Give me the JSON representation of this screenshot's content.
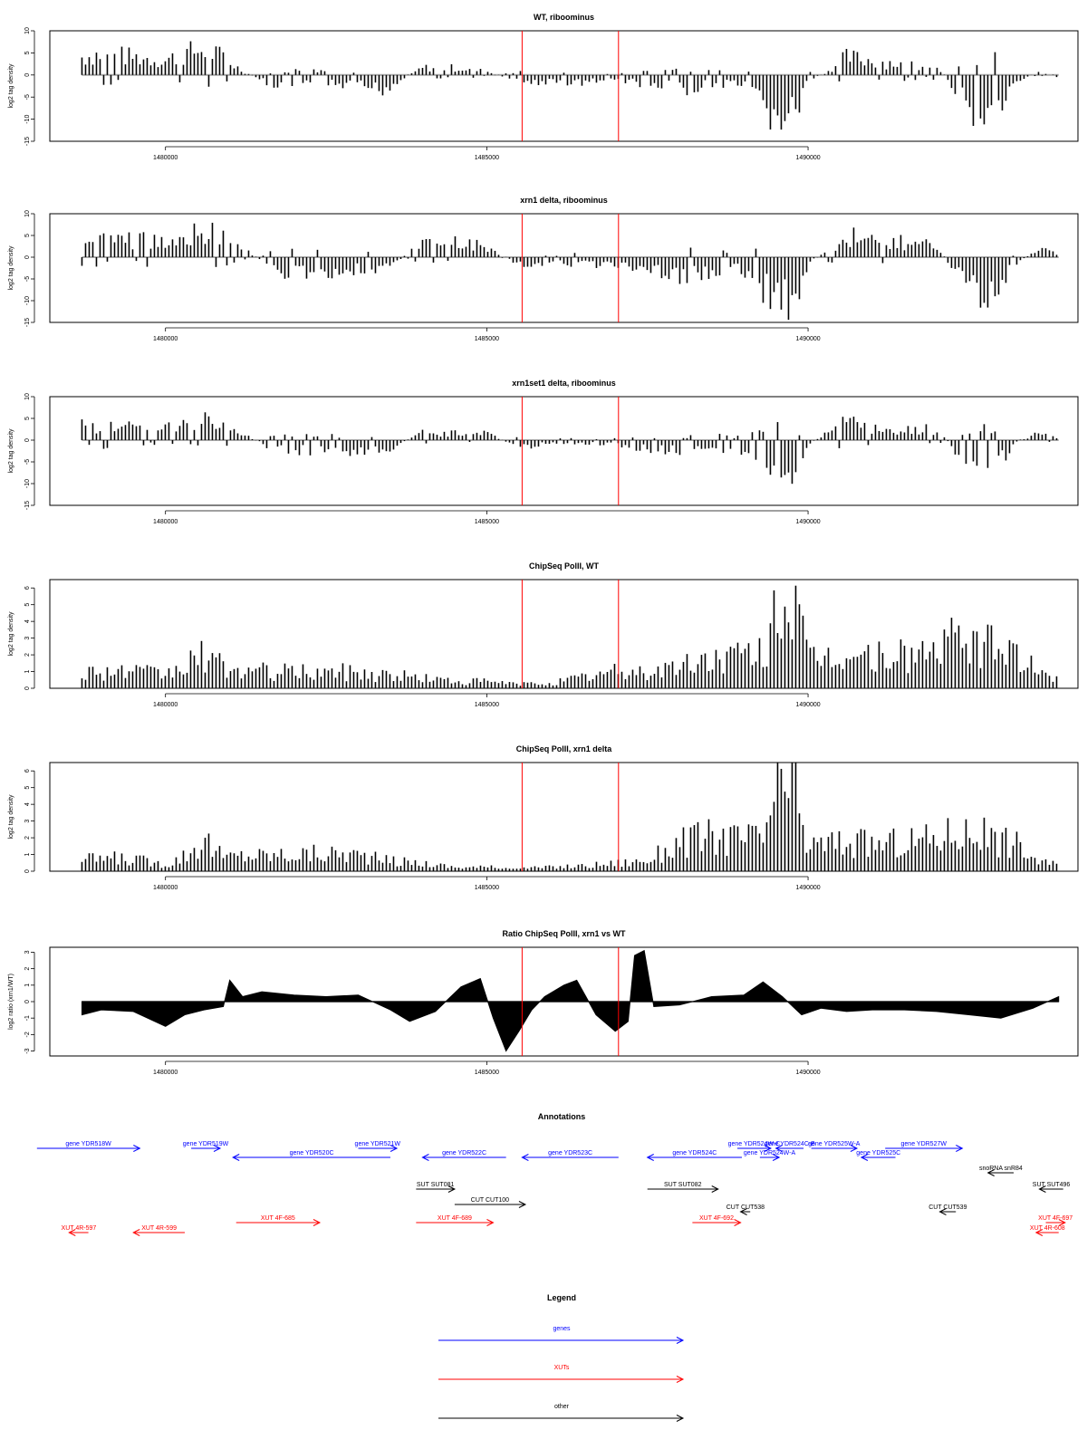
{
  "window": {
    "title": ""
  },
  "colors": {
    "gene": "#0000ff",
    "xut": "#ff0000",
    "other": "#000000",
    "marker": "#ff0000",
    "zero": "#aaaaaa",
    "frame": "#000000"
  },
  "markers": [
    1485550,
    1487050
  ],
  "chart_data": [
    {
      "type": "bar",
      "title": "WT, riboominus",
      "ylabel": "log2 tag density",
      "xlim": [
        1478200,
        1494200
      ],
      "ylim": [
        -15,
        10
      ],
      "xticks": [
        1480000,
        1485000,
        1490000
      ],
      "xtick_labels": [
        "1480000",
        "1485000",
        "1490000"
      ],
      "yticks": [
        10,
        5,
        0,
        -5,
        -10,
        -15
      ],
      "ytick_labels": [
        "10",
        "5",
        "0",
        "-5",
        "-10",
        "-15"
      ],
      "x": [
        1478700,
        1479000,
        1479500,
        1480000,
        1480300,
        1480600,
        1480900,
        1481200,
        1481700,
        1482300,
        1482900,
        1483400,
        1484000,
        1484500,
        1485000,
        1485500,
        1486000,
        1486500,
        1487000,
        1487500,
        1488000,
        1488500,
        1489000,
        1489300,
        1489500,
        1489800,
        1490000,
        1490300,
        1490600,
        1491000,
        1491500,
        1492000,
        1492300,
        1492600,
        1492900,
        1493200,
        1493600,
        1493900
      ],
      "values": [
        5,
        6,
        5,
        4,
        6,
        7,
        5,
        1,
        -3,
        -3,
        -3,
        -4,
        2,
        2,
        1,
        -2,
        -2,
        -2,
        -1,
        -3,
        -4,
        -3,
        -3,
        -9,
        -12,
        -11,
        -2,
        1,
        5,
        4,
        3,
        3,
        -4,
        -10,
        -11,
        -2,
        1,
        -1
      ]
    },
    {
      "type": "bar",
      "title": "xrn1 delta, riboominus",
      "ylabel": "log2 tag density",
      "xlim": [
        1478200,
        1494200
      ],
      "ylim": [
        -15,
        10
      ],
      "xticks": [
        1480000,
        1485000,
        1490000
      ],
      "xtick_labels": [
        "1480000",
        "1485000",
        "1490000"
      ],
      "yticks": [
        10,
        5,
        0,
        -5,
        -10,
        -15
      ],
      "ytick_labels": [
        "10",
        "5",
        "0",
        "-5",
        "-10",
        "-15"
      ],
      "x": [
        1478700,
        1479000,
        1479500,
        1480000,
        1480300,
        1480600,
        1480900,
        1481200,
        1481700,
        1482300,
        1482900,
        1483400,
        1484000,
        1484500,
        1485000,
        1485500,
        1486000,
        1486500,
        1487000,
        1487500,
        1488000,
        1488500,
        1489000,
        1489300,
        1489500,
        1489800,
        1490000,
        1490300,
        1490600,
        1491000,
        1491500,
        1492000,
        1492300,
        1492600,
        1492900,
        1493200,
        1493600,
        1493900
      ],
      "values": [
        5,
        5,
        5,
        4,
        7,
        8,
        6,
        3,
        -4,
        -4,
        -4,
        -4,
        4,
        4,
        3,
        -2,
        -2,
        -2,
        -2,
        -4,
        -5,
        -4,
        -4,
        -9,
        -13,
        -11,
        -2,
        2,
        6,
        5,
        4,
        3,
        -4,
        -9,
        -10,
        -2,
        2,
        1
      ]
    },
    {
      "type": "bar",
      "title": "xrn1set1 delta, riboominus",
      "ylabel": "log2 tag density",
      "xlim": [
        1478200,
        1494200
      ],
      "ylim": [
        -15,
        10
      ],
      "xticks": [
        1480000,
        1485000,
        1490000
      ],
      "xtick_labels": [
        "1480000",
        "1485000",
        "1490000"
      ],
      "yticks": [
        10,
        5,
        0,
        -5,
        -10,
        -15
      ],
      "ytick_labels": [
        "10",
        "5",
        "0",
        "-5",
        "-10",
        "-15"
      ],
      "x": [
        1478700,
        1479000,
        1479500,
        1480000,
        1480300,
        1480600,
        1480900,
        1481200,
        1481700,
        1482300,
        1482900,
        1483400,
        1484000,
        1484500,
        1485000,
        1485500,
        1486000,
        1486500,
        1487000,
        1487500,
        1488000,
        1488500,
        1489000,
        1489300,
        1489500,
        1489800,
        1490000,
        1490300,
        1490600,
        1491000,
        1491500,
        1492000,
        1492300,
        1492600,
        1492900,
        1493200,
        1493600,
        1493900
      ],
      "values": [
        4,
        4,
        4,
        3,
        5,
        6,
        4,
        2,
        -3,
        -3,
        -3,
        -3,
        2,
        2,
        2,
        -2,
        -1,
        -1,
        -1,
        -3,
        -3,
        -3,
        -3,
        -6,
        -10,
        -9,
        -1,
        2,
        5,
        3,
        3,
        3,
        -3,
        -8,
        -8,
        -1,
        2,
        1
      ]
    },
    {
      "type": "bar",
      "title": "ChipSeq PolII, WT",
      "ylabel": "log2 tag density",
      "xlim": [
        1478200,
        1494200
      ],
      "ylim": [
        0,
        6.5
      ],
      "xticks": [
        1480000,
        1485000,
        1490000
      ],
      "xtick_labels": [
        "1480000",
        "1485000",
        "1490000"
      ],
      "yticks": [
        0,
        1,
        2,
        3,
        4,
        5,
        6
      ],
      "ytick_labels": [
        "0",
        "1",
        "2",
        "3",
        "4",
        "5",
        "6"
      ],
      "x": [
        1478700,
        1479000,
        1479500,
        1480000,
        1480300,
        1480600,
        1480900,
        1481200,
        1481700,
        1482300,
        1482900,
        1483400,
        1484000,
        1484500,
        1485000,
        1485500,
        1486000,
        1486500,
        1487000,
        1487500,
        1488000,
        1488500,
        1489000,
        1489300,
        1489500,
        1489800,
        1490000,
        1490300,
        1490600,
        1491000,
        1491500,
        1492000,
        1492300,
        1492600,
        1492900,
        1493200,
        1493600,
        1493900
      ],
      "values": [
        1.2,
        1.3,
        1.2,
        1,
        1.6,
        2.5,
        1.5,
        1.3,
        1.2,
        1.2,
        1.2,
        1,
        0.8,
        0.5,
        0.5,
        0.3,
        0.4,
        0.8,
        1.2,
        1.2,
        1.6,
        2.2,
        2.4,
        2.6,
        6.2,
        6.3,
        2,
        2.3,
        2.4,
        2.3,
        2.5,
        2.8,
        3.6,
        3.2,
        3,
        2.9,
        1,
        0.8
      ]
    },
    {
      "type": "bar",
      "title": "ChipSeq PolII, xrn1 delta",
      "ylabel": "log2 tag density",
      "xlim": [
        1478200,
        1494200
      ],
      "ylim": [
        0,
        6.5
      ],
      "xticks": [
        1480000,
        1485000,
        1490000
      ],
      "xtick_labels": [
        "1480000",
        "1485000",
        "1490000"
      ],
      "yticks": [
        0,
        1,
        2,
        3,
        4,
        5,
        6
      ],
      "ytick_labels": [
        "0",
        "1",
        "2",
        "3",
        "4",
        "5",
        "6"
      ],
      "x": [
        1478700,
        1479000,
        1479500,
        1480000,
        1480300,
        1480600,
        1480900,
        1481200,
        1481700,
        1482300,
        1482900,
        1483400,
        1484000,
        1484500,
        1485000,
        1485500,
        1486000,
        1486500,
        1487000,
        1487500,
        1488000,
        1488500,
        1489000,
        1489300,
        1489500,
        1489800,
        1490000,
        1490300,
        1490600,
        1491000,
        1491500,
        1492000,
        1492300,
        1492600,
        1492900,
        1493200,
        1493600,
        1493900
      ],
      "values": [
        0.8,
        1,
        0.9,
        0.5,
        1.2,
        2.4,
        1,
        1.2,
        1.2,
        1.3,
        1.3,
        0.8,
        0.6,
        0.3,
        0.3,
        0.2,
        0.3,
        0.4,
        0.6,
        0.8,
        2.2,
        2.6,
        2.4,
        2.5,
        6.1,
        6,
        1.8,
        2.1,
        2.2,
        2,
        2.2,
        2.5,
        3,
        2.8,
        2.4,
        2.2,
        0.7,
        0.5
      ]
    },
    {
      "type": "area",
      "title": "Ratio ChipSeq PolII, xrn1 vs WT",
      "ylabel": "log2 ratio (xrn1/WT)",
      "xlim": [
        1478200,
        1494200
      ],
      "ylim": [
        -3.3,
        3.3
      ],
      "xticks": [
        1480000,
        1485000,
        1490000
      ],
      "xtick_labels": [
        "1480000",
        "1485000",
        "1490000"
      ],
      "yticks": [
        3,
        2,
        1,
        0,
        -1,
        -2,
        -3
      ],
      "ytick_labels": [
        "3",
        "2",
        "1",
        "0",
        "-1",
        "-2",
        "-3"
      ],
      "x": [
        1478700,
        1479000,
        1479500,
        1480000,
        1480300,
        1480600,
        1480900,
        1481000,
        1481200,
        1481500,
        1482000,
        1482500,
        1483000,
        1483500,
        1483800,
        1484200,
        1484600,
        1484900,
        1485100,
        1485300,
        1485500,
        1485700,
        1485900,
        1486200,
        1486400,
        1486700,
        1487000,
        1487200,
        1487300,
        1487450,
        1487600,
        1488000,
        1488500,
        1489000,
        1489300,
        1489600,
        1489900,
        1490200,
        1490600,
        1491000,
        1491500,
        1492000,
        1492500,
        1493000,
        1493500,
        1493900
      ],
      "values": [
        -0.8,
        -0.5,
        -0.6,
        -1.5,
        -0.8,
        -0.5,
        -0.3,
        1.3,
        0.3,
        0.6,
        0.4,
        0.3,
        0.4,
        -0.5,
        -1.2,
        -0.6,
        0.9,
        1.4,
        -1,
        -3,
        -1.8,
        -0.5,
        0.3,
        1,
        1.3,
        -0.8,
        -1.8,
        -1.2,
        2.8,
        3.1,
        -0.3,
        -0.2,
        0.3,
        0.4,
        1.2,
        0.3,
        -0.8,
        -0.4,
        -0.6,
        -0.5,
        -0.5,
        -0.6,
        -0.8,
        -1,
        -0.4,
        0.3
      ]
    }
  ],
  "annotations": {
    "title": "Annotations",
    "items": [
      {
        "label": "gene YDR518W",
        "start": 1478000,
        "end": 1479600,
        "type": "gene",
        "row": 0
      },
      {
        "label": "gene YDR519W",
        "start": 1480400,
        "end": 1480850,
        "type": "gene",
        "row": 0
      },
      {
        "label": "gene YDR520C",
        "start": 1481050,
        "end": 1483500,
        "type": "gene",
        "row": 1
      },
      {
        "label": "gene YDR521W",
        "start": 1483000,
        "end": 1483600,
        "type": "gene",
        "row": 0
      },
      {
        "label": "gene YDR522C",
        "start": 1484000,
        "end": 1485300,
        "type": "gene",
        "row": 1
      },
      {
        "label": "gene YDR523C",
        "start": 1485550,
        "end": 1487050,
        "type": "gene",
        "row": 1
      },
      {
        "label": "gene YDR524C",
        "start": 1487500,
        "end": 1488970,
        "type": "gene",
        "row": 1
      },
      {
        "label": "gene YDR524W-C",
        "start": 1488900,
        "end": 1489420,
        "type": "gene",
        "row": 0
      },
      {
        "label": "gene YDR524W-A",
        "start": 1489250,
        "end": 1489550,
        "type": "gene",
        "row": 1
      },
      {
        "label": "gene YDR524C-B",
        "start": 1489500,
        "end": 1489930,
        "type": "gene",
        "row": 0
      },
      {
        "label": "gene YDR525W-A",
        "start": 1490050,
        "end": 1490760,
        "type": "gene",
        "row": 0
      },
      {
        "label": "gene YDR525C",
        "start": 1490830,
        "end": 1491360,
        "type": "gene",
        "row": 1
      },
      {
        "label": "gene YDR527W",
        "start": 1491200,
        "end": 1492400,
        "type": "gene",
        "row": 0
      },
      {
        "label": "snoRNA snR84",
        "start": 1492800,
        "end": 1493200,
        "type": "other",
        "row": 2
      },
      {
        "label": "SUT SUT496",
        "start": 1493600,
        "end": 1493970,
        "type": "other",
        "row": 3
      },
      {
        "label": "SUT SUT081",
        "start": 1483900,
        "end": 1484500,
        "type": "other",
        "row": 3
      },
      {
        "label": "SUT SUT082",
        "start": 1487500,
        "end": 1488600,
        "type": "other",
        "row": 3
      },
      {
        "label": "CUT CUT100",
        "start": 1484500,
        "end": 1485600,
        "type": "other",
        "row": 4
      },
      {
        "label": "CUT CUT538",
        "start": 1488950,
        "end": 1489100,
        "type": "other",
        "row": 5
      },
      {
        "label": "CUT CUT539",
        "start": 1492050,
        "end": 1492300,
        "type": "other",
        "row": 5
      },
      {
        "label": "XUT 4F-685",
        "start": 1481100,
        "end": 1482400,
        "type": "xut",
        "row": 6
      },
      {
        "label": "XUT 4F-689",
        "start": 1483900,
        "end": 1485100,
        "type": "xut",
        "row": 6
      },
      {
        "label": "XUT 4F-692",
        "start": 1488200,
        "end": 1488950,
        "type": "xut",
        "row": 6
      },
      {
        "label": "XUT 4F-697",
        "start": 1493700,
        "end": 1494000,
        "type": "xut",
        "row": 6
      },
      {
        "label": "XUT 4R-597",
        "start": 1478500,
        "end": 1478800,
        "type": "xut",
        "row": 7
      },
      {
        "label": "XUT 4R-599",
        "start": 1479500,
        "end": 1480300,
        "type": "xut",
        "row": 7
      },
      {
        "label": "XUT 4R-608",
        "start": 1493550,
        "end": 1493900,
        "type": "xut",
        "row": 7
      }
    ]
  },
  "legend": {
    "title": "Legend",
    "items": [
      {
        "label": "genes",
        "type": "gene"
      },
      {
        "label": "XUTs",
        "type": "xut"
      },
      {
        "label": "other",
        "type": "other"
      }
    ]
  }
}
